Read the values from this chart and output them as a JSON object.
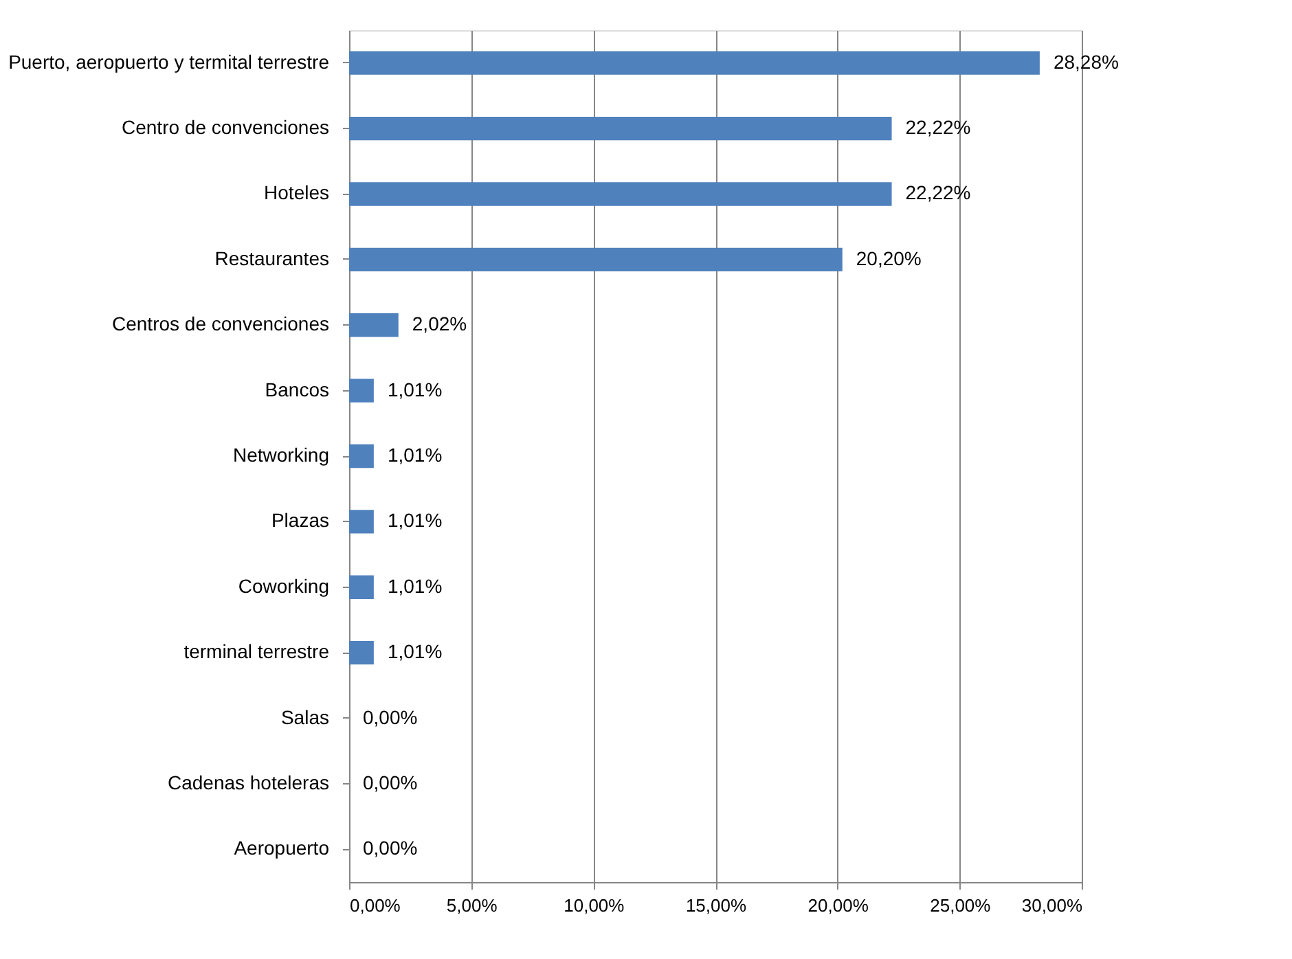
{
  "chart_data": {
    "type": "bar",
    "orientation": "horizontal",
    "categories": [
      "Puerto, aeropuerto y termital terrestre",
      "Centro de convenciones",
      "Hoteles",
      "Restaurantes",
      "Centros de convenciones",
      "Bancos",
      "Networking",
      "Plazas",
      "Coworking",
      "terminal terrestre",
      "Salas",
      "Cadenas hoteleras",
      "Aeropuerto"
    ],
    "values": [
      28.28,
      22.22,
      22.22,
      20.2,
      2.02,
      1.01,
      1.01,
      1.01,
      1.01,
      1.01,
      0,
      0,
      0
    ],
    "value_labels": [
      "28,28%",
      "22,22%",
      "22,22%",
      "20,20%",
      "2,02%",
      "1,01%",
      "1,01%",
      "1,01%",
      "1,01%",
      "1,01%",
      "0,00%",
      "0,00%",
      "0,00%"
    ],
    "color": "#4f81bd",
    "xlim": [
      0,
      30
    ],
    "xticks": [
      {
        "value": 0,
        "label": "0,00%"
      },
      {
        "value": 5,
        "label": "5,00%"
      },
      {
        "value": 10,
        "label": "10,00%"
      },
      {
        "value": 15,
        "label": "15,00%"
      },
      {
        "value": 20,
        "label": "20,00%"
      },
      {
        "value": 25,
        "label": "25,00%"
      },
      {
        "value": 30,
        "label": "30,00%"
      }
    ],
    "grid": "x"
  }
}
